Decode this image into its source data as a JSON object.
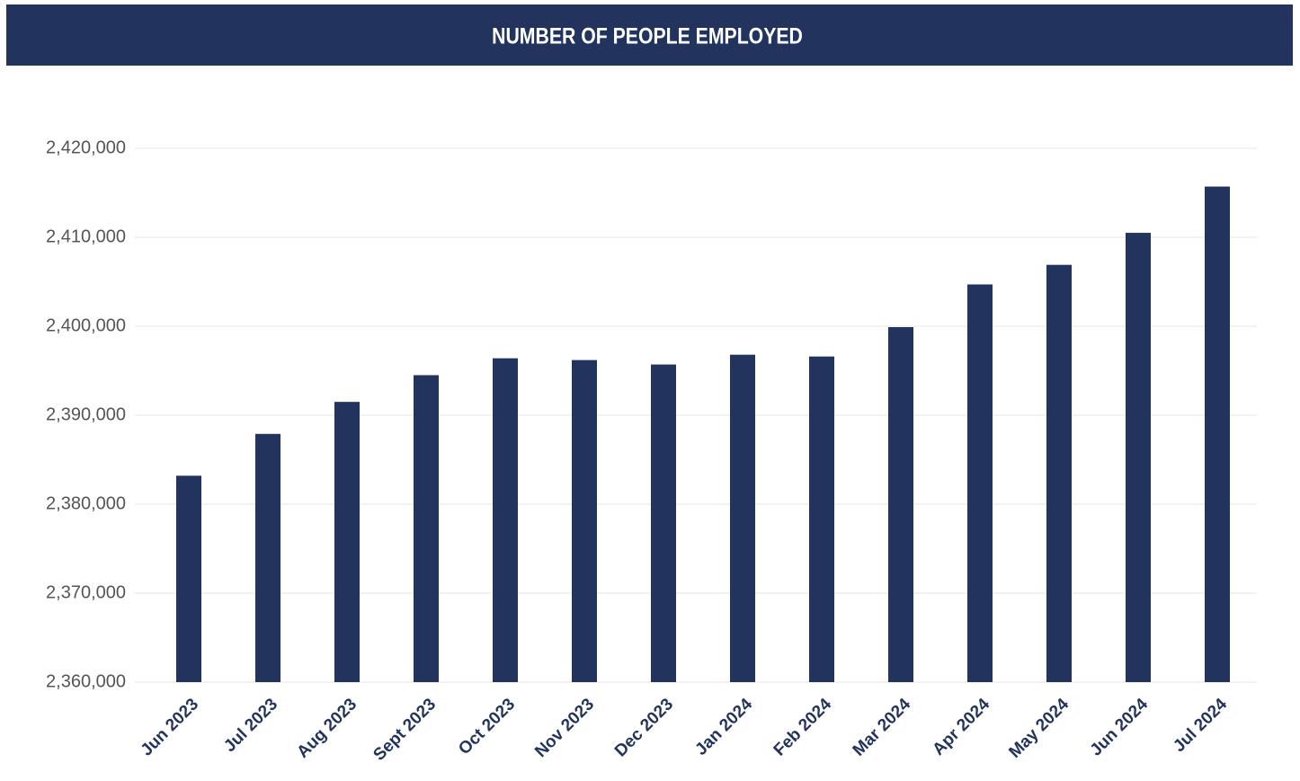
{
  "chart_data": {
    "type": "bar",
    "title": "NUMBER OF PEOPLE EMPLOYED",
    "categories": [
      "Jun 2023",
      "Jul 2023",
      "Aug 2023",
      "Sept 2023",
      "Oct 2023",
      "Nov 2023",
      "Dec 2023",
      "Jan 2024",
      "Feb 2024",
      "Mar 2024",
      "Apr 2024",
      "May 2024",
      "Jun 2024",
      "Jul 2024"
    ],
    "values": [
      2383200,
      2387900,
      2391500,
      2394500,
      2396400,
      2396200,
      2395700,
      2396800,
      2396600,
      2399900,
      2404700,
      2406900,
      2410500,
      2415700
    ],
    "color": "#22345e",
    "ylim": [
      2360000,
      2420000
    ],
    "yticks": [
      {
        "value": 2360000,
        "label": "2,360,000"
      },
      {
        "value": 2370000,
        "label": "2,370,000"
      },
      {
        "value": 2380000,
        "label": "2,380,000"
      },
      {
        "value": 2390000,
        "label": "2,390,000"
      },
      {
        "value": 2400000,
        "label": "2,400,000"
      },
      {
        "value": 2410000,
        "label": "2,410,000"
      },
      {
        "value": 2420000,
        "label": "2,420,000"
      }
    ],
    "grid": true
  }
}
